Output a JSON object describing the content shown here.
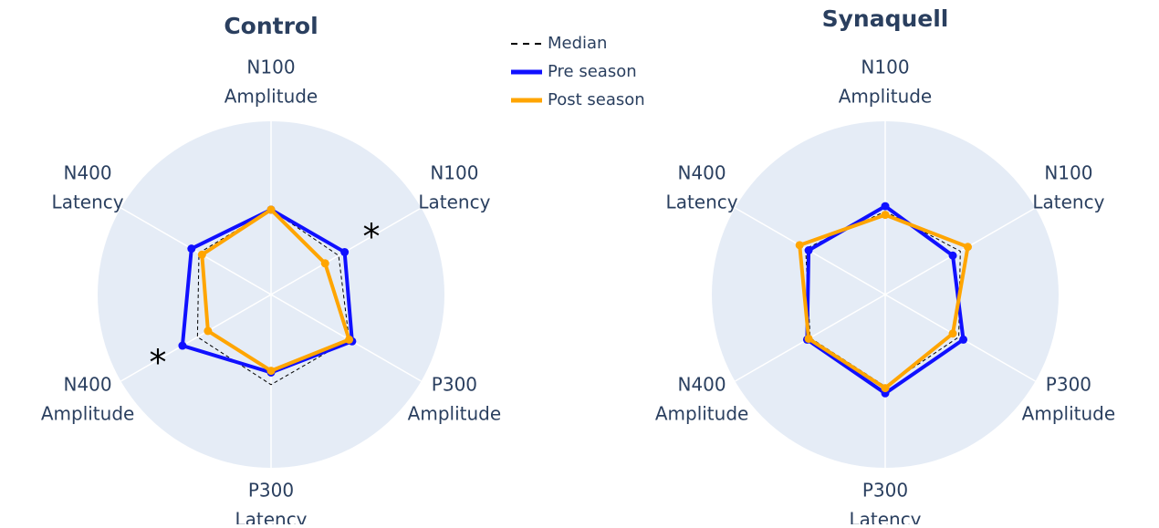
{
  "chart_data": [
    {
      "type": "radar",
      "title": "Control",
      "categories": [
        [
          "N100",
          "Amplitude"
        ],
        [
          "N100",
          "Latency"
        ],
        [
          "P300",
          "Amplitude"
        ],
        [
          "P300",
          "Latency"
        ],
        [
          "N400",
          "Amplitude"
        ],
        [
          "N400",
          "Latency"
        ]
      ],
      "rlim": [
        0,
        1
      ],
      "series": [
        {
          "name": "Median",
          "color": "#000000",
          "dash": true,
          "markers": false,
          "values": [
            0.49,
            0.45,
            0.52,
            0.52,
            0.49,
            0.48
          ]
        },
        {
          "name": "Pre season",
          "color": "#1010ff",
          "dash": false,
          "markers": true,
          "values": [
            0.49,
            0.49,
            0.54,
            0.45,
            0.59,
            0.53
          ]
        },
        {
          "name": "Post season",
          "color": "#ffa500",
          "dash": false,
          "markers": true,
          "values": [
            0.49,
            0.36,
            0.52,
            0.44,
            0.42,
            0.46
          ]
        }
      ],
      "annotations": [
        "*",
        "*"
      ]
    },
    {
      "type": "radar",
      "title": "Synaquell",
      "categories": [
        [
          "N100",
          "Amplitude"
        ],
        [
          "N100",
          "Latency"
        ],
        [
          "P300",
          "Amplitude"
        ],
        [
          "P300",
          "Latency"
        ],
        [
          "N400",
          "Amplitude"
        ],
        [
          "N400",
          "Latency"
        ]
      ],
      "rlim": [
        0,
        1
      ],
      "series": [
        {
          "name": "Median",
          "color": "#000000",
          "dash": true,
          "markers": false,
          "values": [
            0.48,
            0.5,
            0.49,
            0.53,
            0.5,
            0.53
          ]
        },
        {
          "name": "Pre season",
          "color": "#1010ff",
          "dash": false,
          "markers": true,
          "values": [
            0.51,
            0.45,
            0.52,
            0.57,
            0.52,
            0.51
          ]
        },
        {
          "name": "Post season",
          "color": "#ffa500",
          "dash": false,
          "markers": true,
          "values": [
            0.46,
            0.55,
            0.45,
            0.54,
            0.51,
            0.57
          ]
        }
      ],
      "annotations": []
    }
  ]
}
